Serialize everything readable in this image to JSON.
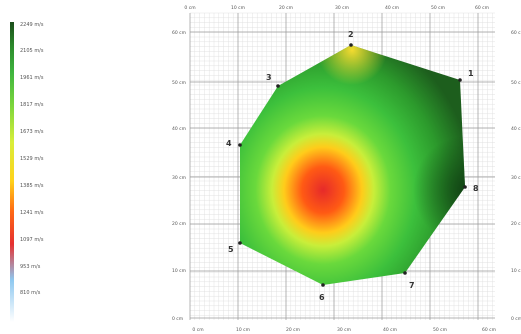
{
  "legend": {
    "colors": [
      "#1a4d1a",
      "#2c8a2c",
      "#3fb53f",
      "#7dd63c",
      "#d8ee3a",
      "#ffd21a",
      "#ff6a14",
      "#e63030",
      "#8ec8f0",
      "#ffffff"
    ],
    "labels": [
      "2249 m/s",
      "2105 m/s",
      "1961 m/s",
      "1817 m/s",
      "1673 m/s",
      "1529 m/s",
      "1385 m/s",
      "1241 m/s",
      "1097 m/s",
      "953 m/s",
      "810 m/s"
    ]
  },
  "axes": {
    "top_labels": [
      "0 cm",
      "10 cm",
      "20 cm",
      "30 cm",
      "40 cm",
      "50 cm",
      "60 cm"
    ],
    "bottom_labels": [
      "0 cm",
      "10 cm",
      "20 cm",
      "30 cm",
      "40 cm",
      "50 cm",
      "60 cm"
    ],
    "left_labels": [
      "60 cm",
      "50 cm",
      "40 cm",
      "30 cm",
      "20 cm",
      "10 cm",
      "0 cm"
    ],
    "right_labels": [
      "60 cm",
      "50 cm",
      "40 cm",
      "30 cm",
      "20 cm",
      "10 cm",
      "0 cm"
    ]
  },
  "sensors": [
    {
      "label": "1"
    },
    {
      "label": "2"
    },
    {
      "label": "3"
    },
    {
      "label": "4"
    },
    {
      "label": "5"
    },
    {
      "label": "6"
    },
    {
      "label": "7"
    },
    {
      "label": "8"
    }
  ]
}
